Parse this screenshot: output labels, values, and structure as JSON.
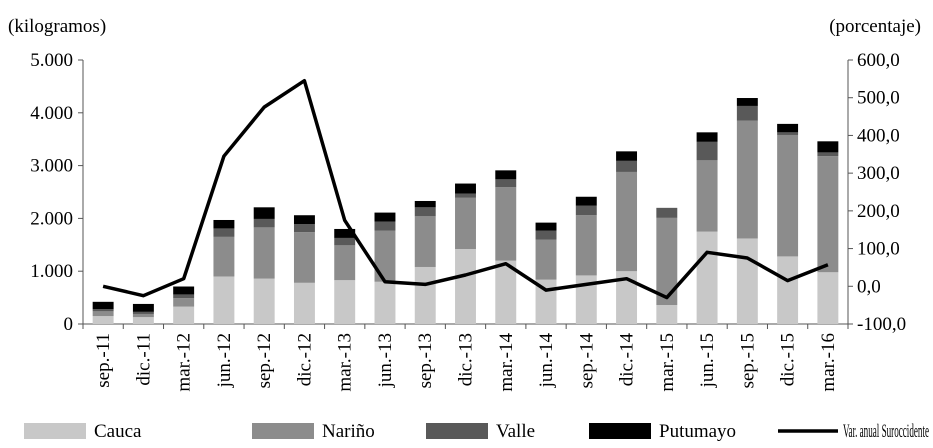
{
  "chart_data": {
    "type": "bar",
    "stacked": true,
    "categories": [
      "sep.-11",
      "dic.-11",
      "mar.-12",
      "jun.-12",
      "sep.-12",
      "dic.-12",
      "mar.-13",
      "jun.-13",
      "sep.-13",
      "dic.-13",
      "mar.-14",
      "jun.-14",
      "sep.-14",
      "dic.-14",
      "mar.-15",
      "jun.-15",
      "sep.-15",
      "dic.-15",
      "mar.-16"
    ],
    "ylabel_left": "(kilogramos)",
    "ylabel_right": "(porcentaje)",
    "ylim_left": [
      0,
      5000
    ],
    "ylim_right": [
      -100,
      600
    ],
    "yticks_left": [
      "0",
      "1.000",
      "2.000",
      "3.000",
      "4.000",
      "5.000"
    ],
    "yticks_left_values": [
      0,
      1000,
      2000,
      3000,
      4000,
      5000
    ],
    "yticks_right": [
      "-100,0",
      "0,0",
      "100,0",
      "200,0",
      "300,0",
      "400,0",
      "500,0",
      "600,0"
    ],
    "yticks_right_values": [
      -100,
      0,
      100,
      200,
      300,
      400,
      500,
      600
    ],
    "grid": false,
    "legend_position": "bottom",
    "series": [
      {
        "name": "Cauca",
        "color": "#c8c8c8",
        "values": [
          150,
          130,
          330,
          900,
          860,
          780,
          830,
          800,
          1080,
          1420,
          1200,
          840,
          920,
          1000,
          360,
          1750,
          1620,
          1280,
          980
        ]
      },
      {
        "name": "Nariño",
        "color": "#8c8c8c",
        "values": [
          90,
          60,
          160,
          750,
          970,
          960,
          660,
          970,
          960,
          970,
          1390,
          760,
          1140,
          1880,
          1650,
          1350,
          2230,
          2300,
          2200
        ]
      },
      {
        "name": "Valle",
        "color": "#595959",
        "values": [
          40,
          40,
          70,
          160,
          160,
          150,
          140,
          170,
          170,
          80,
          150,
          170,
          180,
          210,
          190,
          350,
          280,
          50,
          70
        ]
      },
      {
        "name": "Putumayo",
        "color": "#000000",
        "values": [
          140,
          150,
          150,
          160,
          220,
          170,
          170,
          170,
          120,
          190,
          170,
          150,
          170,
          180,
          0,
          180,
          150,
          160,
          210
        ]
      }
    ],
    "line_series": {
      "name": "Var. anual Suroccidente",
      "color": "#000000",
      "axis": "right",
      "values": [
        0,
        -25,
        20,
        345,
        475,
        545,
        175,
        12,
        5,
        30,
        60,
        -10,
        5,
        20,
        -30,
        90,
        75,
        15,
        57
      ]
    }
  }
}
